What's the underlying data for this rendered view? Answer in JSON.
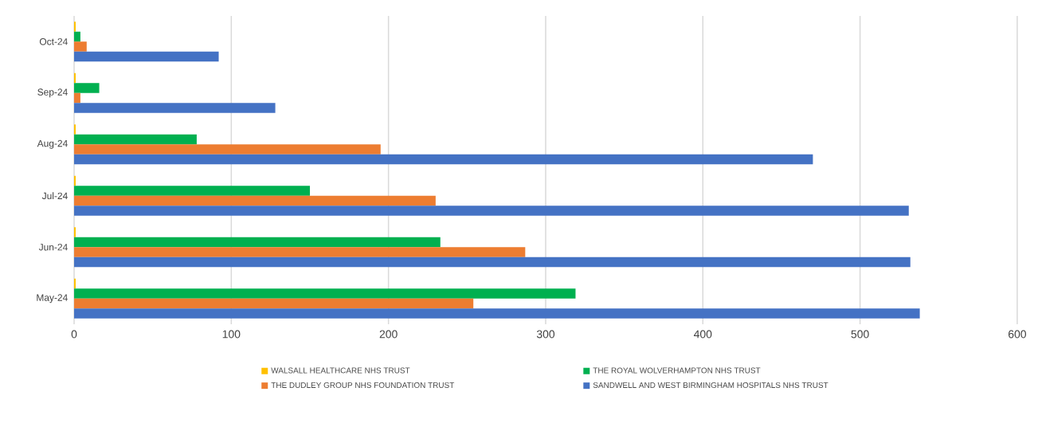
{
  "chart_data": {
    "type": "bar",
    "orientation": "horizontal",
    "categories": [
      "Oct-24",
      "Sep-24",
      "Aug-24",
      "Jul-24",
      "Jun-24",
      "May-24"
    ],
    "series": [
      {
        "name": "WALSALL HEALTHCARE NHS TRUST",
        "color": "#ffc000",
        "values": [
          1,
          1,
          1,
          1,
          1,
          1
        ]
      },
      {
        "name": "THE ROYAL WOLVERHAMPTON NHS TRUST",
        "color": "#00b050",
        "values": [
          4,
          16,
          78,
          150,
          233,
          319
        ]
      },
      {
        "name": "THE DUDLEY GROUP NHS FOUNDATION TRUST",
        "color": "#ed7d31",
        "values": [
          8,
          4,
          195,
          230,
          287,
          254
        ]
      },
      {
        "name": "SANDWELL AND WEST BIRMINGHAM HOSPITALS NHS TRUST",
        "color": "#4472c4",
        "values": [
          92,
          128,
          470,
          531,
          532,
          538
        ]
      }
    ],
    "xlim": [
      0,
      600
    ],
    "xticks": [
      0,
      100,
      200,
      300,
      400,
      500,
      600
    ],
    "grid": "x",
    "legend": "bottom"
  }
}
